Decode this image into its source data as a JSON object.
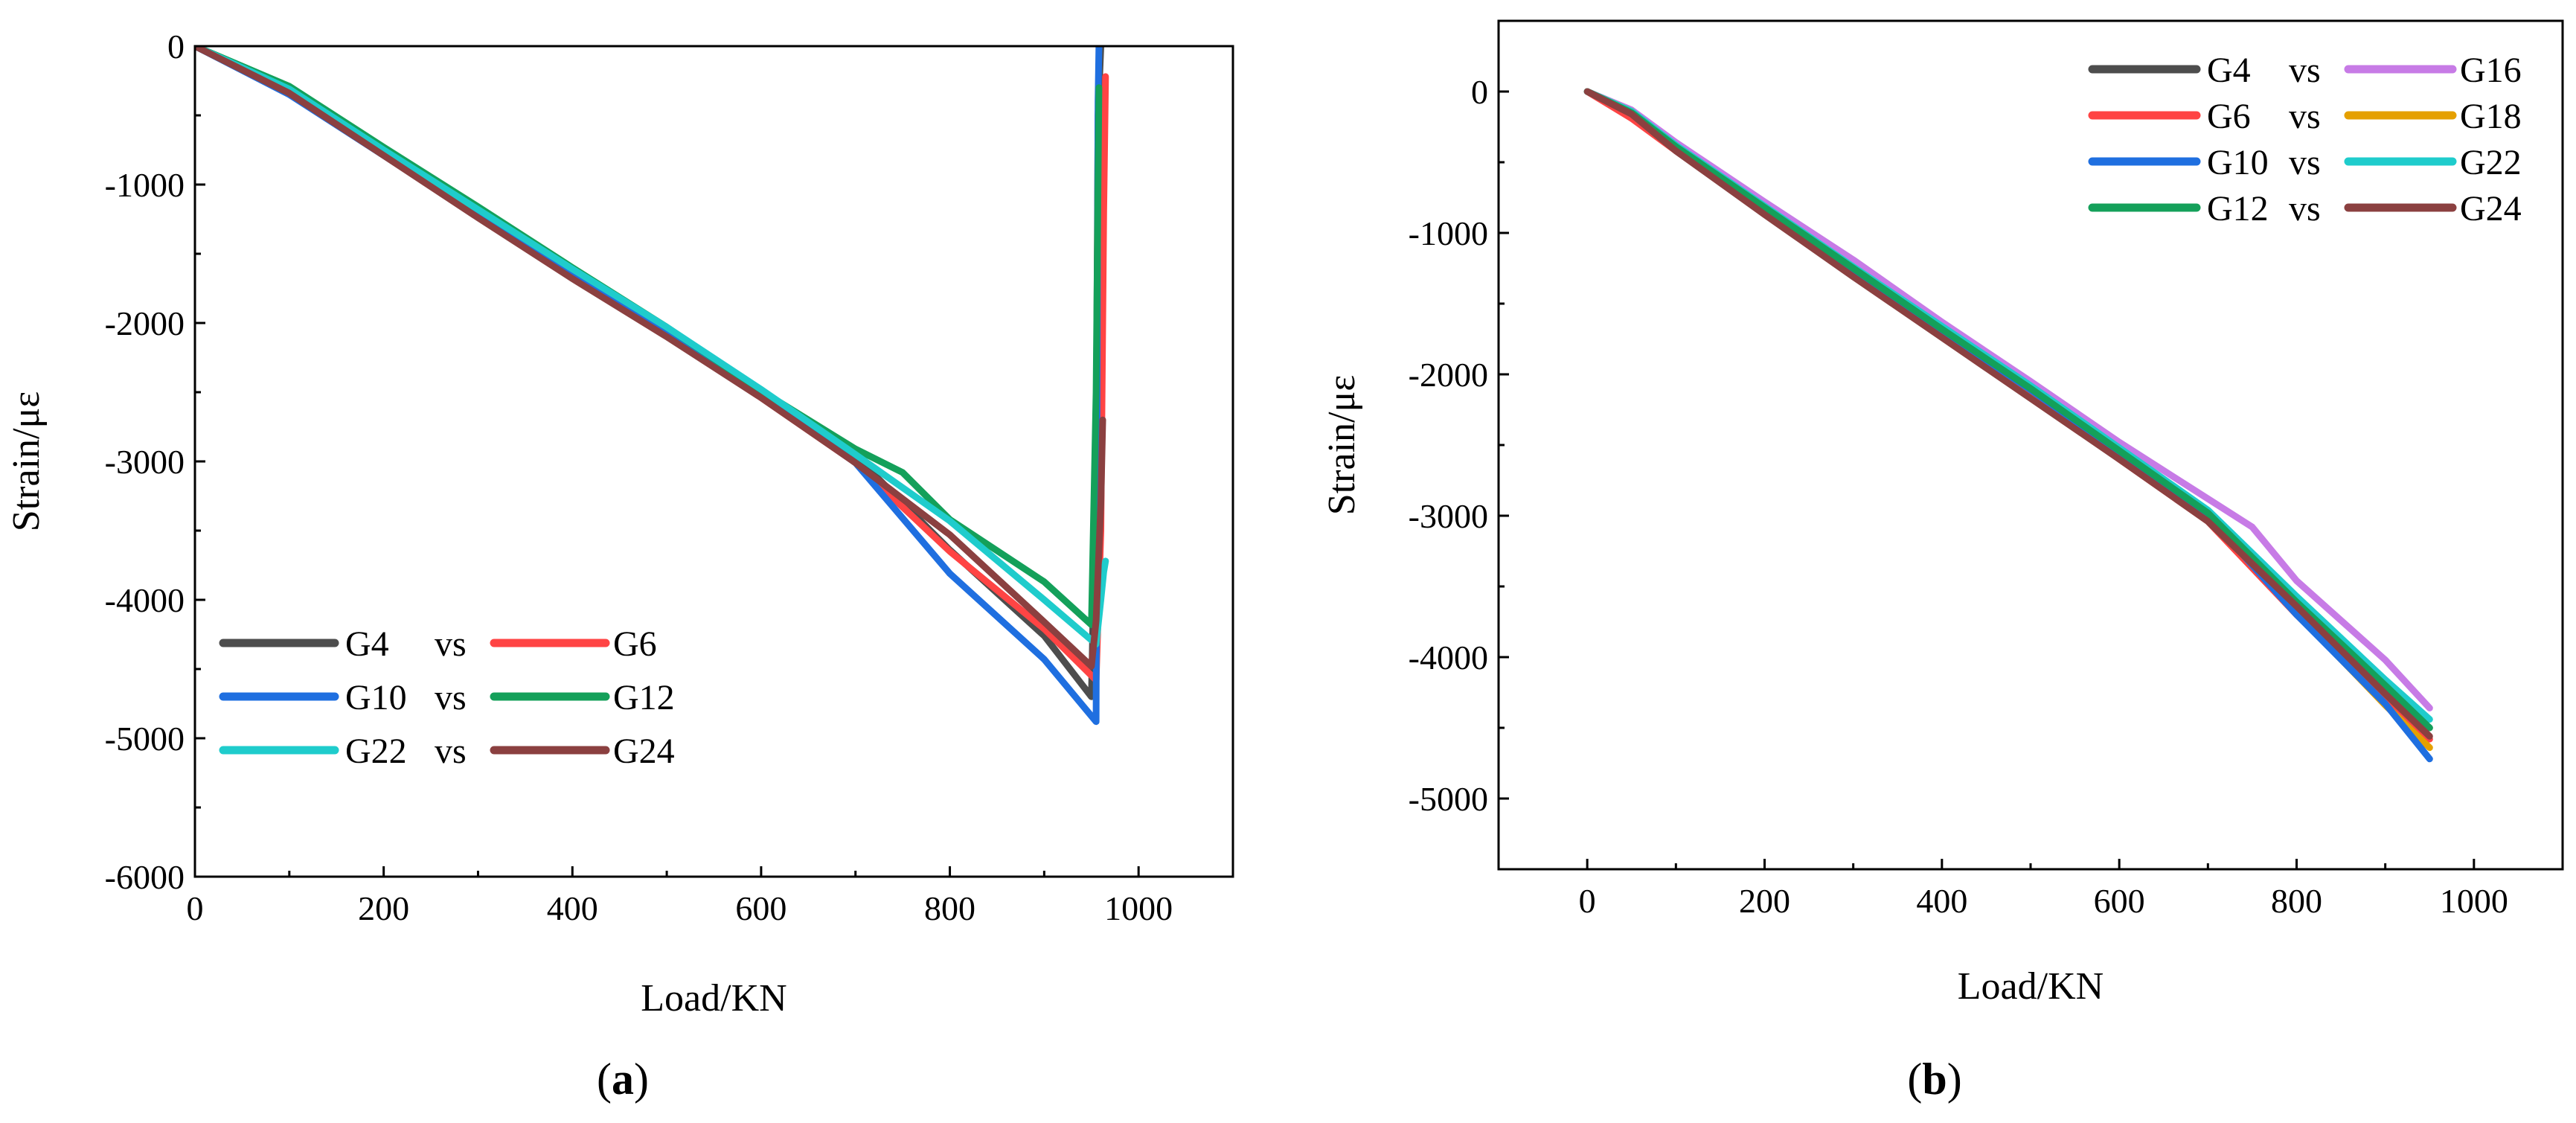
{
  "colors": {
    "dark_gray": "#4d4d4d",
    "red": "#ff4444",
    "blue": "#1f6fe0",
    "green": "#14a05a",
    "cyan": "#1fcccc",
    "brown": "#8b4040",
    "violet": "#c77be6",
    "orange": "#e5a000"
  },
  "chart_data": [
    {
      "type": "line",
      "panel_label": "(a)",
      "panel_letter": "a",
      "xlabel": "Load/KN",
      "ylabel": "Strain/με",
      "xlim": [
        0,
        1100
      ],
      "ylim": [
        -6000,
        0
      ],
      "xticks": [
        0,
        200,
        400,
        600,
        800,
        1000
      ],
      "yticks": [
        0,
        -1000,
        -2000,
        -3000,
        -4000,
        -5000,
        -6000
      ],
      "legend_position": "bottom-left",
      "legend_rows": [
        {
          "left": "G4",
          "sep": "vs",
          "right": "G6",
          "left_color": "dark_gray",
          "right_color": "red"
        },
        {
          "left": "G10",
          "sep": "vs",
          "right": "G12",
          "left_color": "blue",
          "right_color": "green"
        },
        {
          "left": "G22",
          "sep": "vs",
          "right": "G24",
          "left_color": "cyan",
          "right_color": "brown"
        }
      ],
      "series": [
        {
          "name": "G4",
          "color": "dark_gray",
          "x": [
            0,
            100,
            200,
            300,
            400,
            500,
            600,
            700,
            800,
            900,
            950,
            955,
            957,
            960
          ],
          "y": [
            0,
            -340,
            -780,
            -1220,
            -1660,
            -2080,
            -2530,
            -2960,
            -3640,
            -4260,
            -4700,
            -3000,
            -500,
            0
          ]
        },
        {
          "name": "G6",
          "color": "red",
          "x": [
            0,
            100,
            200,
            300,
            400,
            500,
            600,
            700,
            800,
            900,
            955,
            960,
            963,
            965
          ],
          "y": [
            0,
            -330,
            -770,
            -1210,
            -1660,
            -2090,
            -2540,
            -3010,
            -3650,
            -4210,
            -4580,
            -3500,
            -1200,
            -220
          ]
        },
        {
          "name": "G10",
          "color": "blue",
          "x": [
            0,
            100,
            200,
            300,
            400,
            500,
            600,
            700,
            800,
            900,
            955,
            956,
            957,
            958
          ],
          "y": [
            0,
            -350,
            -790,
            -1230,
            -1660,
            -2070,
            -2530,
            -3010,
            -3810,
            -4430,
            -4880,
            -2500,
            -400,
            0
          ]
        },
        {
          "name": "G12",
          "color": "green",
          "x": [
            0,
            100,
            200,
            300,
            400,
            500,
            600,
            700,
            750,
            800,
            900,
            950,
            955,
            958
          ],
          "y": [
            0,
            -290,
            -730,
            -1160,
            -1600,
            -2030,
            -2490,
            -2910,
            -3080,
            -3420,
            -3870,
            -4180,
            -2500,
            -300
          ]
        },
        {
          "name": "G22",
          "color": "cyan",
          "x": [
            0,
            100,
            200,
            300,
            400,
            500,
            600,
            700,
            800,
            900,
            955,
            960,
            963,
            965
          ],
          "y": [
            0,
            -310,
            -750,
            -1180,
            -1610,
            -2030,
            -2480,
            -2950,
            -3430,
            -4000,
            -4320,
            -4000,
            -3800,
            -3720
          ]
        },
        {
          "name": "G24",
          "color": "brown",
          "x": [
            0,
            100,
            200,
            300,
            400,
            500,
            600,
            700,
            800,
            900,
            950,
            955,
            960,
            962
          ],
          "y": [
            0,
            -340,
            -790,
            -1240,
            -1680,
            -2100,
            -2540,
            -3010,
            -3530,
            -4160,
            -4480,
            -4150,
            -3300,
            -2700
          ]
        }
      ]
    },
    {
      "type": "line",
      "panel_label": "(b)",
      "panel_letter": "b",
      "xlabel": "Load/KN",
      "ylabel": "Strain/με",
      "xlim": [
        -100,
        1100
      ],
      "ylim": [
        -5500,
        500
      ],
      "xticks": [
        0,
        200,
        400,
        600,
        800,
        1000
      ],
      "yticks": [
        0,
        -1000,
        -2000,
        -3000,
        -4000,
        -5000
      ],
      "legend_position": "top-right",
      "legend_rows": [
        {
          "left": "G4",
          "sep": "vs",
          "right": "G16",
          "left_color": "dark_gray",
          "right_color": "violet"
        },
        {
          "left": "G6",
          "sep": "vs",
          "right": "G18",
          "left_color": "red",
          "right_color": "orange"
        },
        {
          "left": "G10",
          "sep": "vs",
          "right": "G22",
          "left_color": "blue",
          "right_color": "cyan"
        },
        {
          "left": "G12",
          "sep": "vs",
          "right": "G24",
          "left_color": "green",
          "right_color": "brown"
        }
      ],
      "series": [
        {
          "name": "G4",
          "color": "dark_gray",
          "x": [
            0,
            50,
            100,
            200,
            300,
            400,
            500,
            600,
            700,
            800,
            900,
            950
          ],
          "y": [
            0,
            -140,
            -400,
            -830,
            -1270,
            -1700,
            -2120,
            -2560,
            -3000,
            -3660,
            -4230,
            -4500
          ]
        },
        {
          "name": "G16",
          "color": "violet",
          "x": [
            0,
            50,
            100,
            200,
            300,
            400,
            500,
            600,
            700,
            750,
            800,
            900,
            950
          ],
          "y": [
            0,
            -130,
            -360,
            -780,
            -1190,
            -1630,
            -2050,
            -2480,
            -2880,
            -3080,
            -3460,
            -4020,
            -4360
          ]
        },
        {
          "name": "G6",
          "color": "red",
          "x": [
            0,
            50,
            100,
            200,
            300,
            400,
            500,
            600,
            700,
            800,
            900,
            950
          ],
          "y": [
            0,
            -190,
            -420,
            -860,
            -1300,
            -1730,
            -2150,
            -2600,
            -3040,
            -3700,
            -4310,
            -4580
          ]
        },
        {
          "name": "G18",
          "color": "orange",
          "x": [
            0,
            50,
            100,
            200,
            300,
            400,
            500,
            600,
            700,
            800,
            900,
            950
          ],
          "y": [
            0,
            -140,
            -390,
            -830,
            -1260,
            -1690,
            -2110,
            -2540,
            -2990,
            -3690,
            -4340,
            -4640
          ]
        },
        {
          "name": "G10",
          "color": "blue",
          "x": [
            0,
            50,
            100,
            200,
            300,
            400,
            500,
            600,
            700,
            800,
            900,
            950
          ],
          "y": [
            0,
            -150,
            -400,
            -830,
            -1260,
            -1690,
            -2110,
            -2550,
            -3000,
            -3700,
            -4330,
            -4720
          ]
        },
        {
          "name": "G22",
          "color": "cyan",
          "x": [
            0,
            50,
            100,
            200,
            300,
            400,
            500,
            600,
            700,
            800,
            900,
            950
          ],
          "y": [
            0,
            -140,
            -380,
            -810,
            -1240,
            -1660,
            -2080,
            -2520,
            -2960,
            -3570,
            -4160,
            -4440
          ]
        },
        {
          "name": "G12",
          "color": "green",
          "x": [
            0,
            50,
            100,
            200,
            300,
            400,
            500,
            600,
            700,
            800,
            900,
            950
          ],
          "y": [
            0,
            -150,
            -390,
            -820,
            -1250,
            -1680,
            -2100,
            -2540,
            -2980,
            -3610,
            -4200,
            -4500
          ]
        },
        {
          "name": "G24",
          "color": "brown",
          "x": [
            0,
            50,
            100,
            200,
            300,
            400,
            500,
            600,
            700,
            800,
            900,
            950
          ],
          "y": [
            0,
            -160,
            -420,
            -870,
            -1310,
            -1740,
            -2170,
            -2600,
            -3040,
            -3640,
            -4260,
            -4560
          ]
        }
      ]
    }
  ]
}
